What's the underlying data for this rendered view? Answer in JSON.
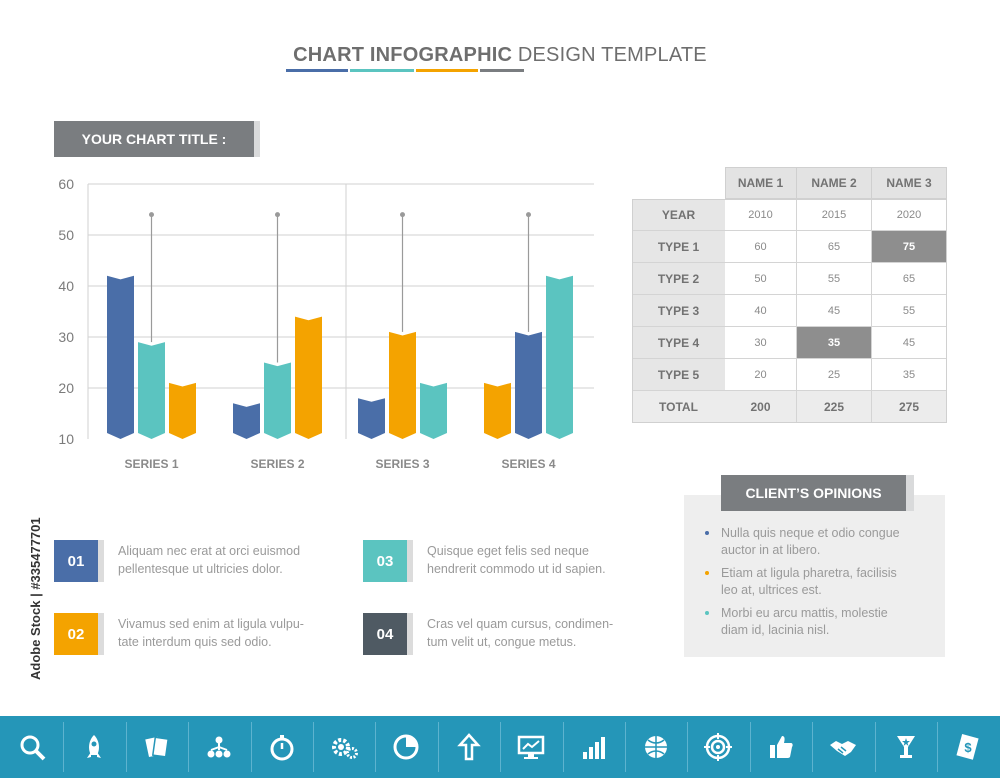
{
  "header": {
    "word1": "CHART",
    "word2": "INFOGRAPHIC",
    "word3": "DESIGN TEMPLATE",
    "underline_colors": [
      "#4a6ea8",
      "#5bc4c0",
      "#f4a300",
      "#7a7d80"
    ]
  },
  "chart_title": "YOUR CHART TITLE :",
  "chart_data": {
    "type": "bar",
    "categories": [
      "SERIES 1",
      "SERIES 2",
      "SERIES 3",
      "SERIES 4"
    ],
    "bars": [
      [
        {
          "value": 42,
          "color": "blue"
        },
        {
          "value": 29,
          "color": "teal"
        },
        {
          "value": 21,
          "color": "orange"
        }
      ],
      [
        {
          "value": 17,
          "color": "blue"
        },
        {
          "value": 25,
          "color": "teal"
        },
        {
          "value": 34,
          "color": "orange"
        }
      ],
      [
        {
          "value": 18,
          "color": "blue"
        },
        {
          "value": 31,
          "color": "orange"
        },
        {
          "value": 21,
          "color": "teal"
        }
      ],
      [
        {
          "value": 21,
          "color": "orange"
        },
        {
          "value": 31,
          "color": "blue"
        },
        {
          "value": 42,
          "color": "teal"
        }
      ]
    ],
    "markers": [
      54,
      54,
      54,
      54
    ],
    "y_ticks": [
      "60",
      "50",
      "40",
      "30",
      "20",
      "10"
    ],
    "ylim": [
      10,
      60
    ],
    "grid": true,
    "colors": {
      "blue": "#4a6ea8",
      "teal": "#5bc4c0",
      "orange": "#f4a300",
      "grid": "#d2d2d2"
    }
  },
  "table": {
    "headers": [
      "NAME 1",
      "NAME 2",
      "NAME 3"
    ],
    "rows": [
      {
        "label": "YEAR",
        "values": [
          "2010",
          "2015",
          "2020"
        ]
      },
      {
        "label": "TYPE 1",
        "values": [
          "60",
          "65",
          "75"
        ]
      },
      {
        "label": "TYPE 2",
        "values": [
          "50",
          "55",
          "65"
        ]
      },
      {
        "label": "TYPE 3",
        "values": [
          "40",
          "45",
          "55"
        ]
      },
      {
        "label": "TYPE 4",
        "values": [
          "30",
          "35",
          "45"
        ]
      },
      {
        "label": "TYPE 5",
        "values": [
          "20",
          "25",
          "35"
        ]
      }
    ],
    "total": {
      "label": "TOTAL",
      "values": [
        "200",
        "225",
        "275"
      ]
    },
    "highlights": [
      [
        1,
        2
      ],
      [
        4,
        1
      ]
    ]
  },
  "items": [
    {
      "num": "01",
      "color": "#4a6ea8",
      "line1": "Aliquam nec erat at orci euismod",
      "line2": "pellentesque ut ultricies dolor."
    },
    {
      "num": "02",
      "color": "#f4a300",
      "line1": "Vivamus sed enim at ligula vulpu-",
      "line2": "tate interdum quis sed odio."
    },
    {
      "num": "03",
      "color": "#5bc4c0",
      "line1": "Quisque eget felis sed neque",
      "line2": "hendrerit commodo ut id sapien."
    },
    {
      "num": "04",
      "color": "#4f5a63",
      "line1": "Cras vel quam cursus, condimen-",
      "line2": "tum velit ut, congue metus."
    }
  ],
  "opinions": {
    "title": "CLIENT’S OPINIONS",
    "entries": [
      {
        "line1": "Nulla quis neque et odio congue",
        "line2": "auctor in at libero.",
        "dot": "#4a6ea8"
      },
      {
        "line1": "Etiam at ligula pharetra, facilisis",
        "line2": "leo at, ultrices est.",
        "dot": "#f4a300"
      },
      {
        "line1": "Morbi eu arcu mattis, molestie",
        "line2": "diam id, lacinia nisl.",
        "dot": "#5bc4c0"
      }
    ]
  },
  "watermark_id": "Adobe Stock | #335477701",
  "icon_bar": {
    "color": "#2596b8",
    "icons": [
      "search-icon",
      "rocket-icon",
      "cards-icon",
      "network-icon",
      "stopwatch-icon",
      "gears-icon",
      "pie-icon",
      "arrow-up-icon",
      "monitor-icon",
      "bar-graph-icon",
      "globe-icon",
      "target-icon",
      "thumbs-up-icon",
      "handshake-icon",
      "trophy-icon",
      "money-icon"
    ]
  }
}
